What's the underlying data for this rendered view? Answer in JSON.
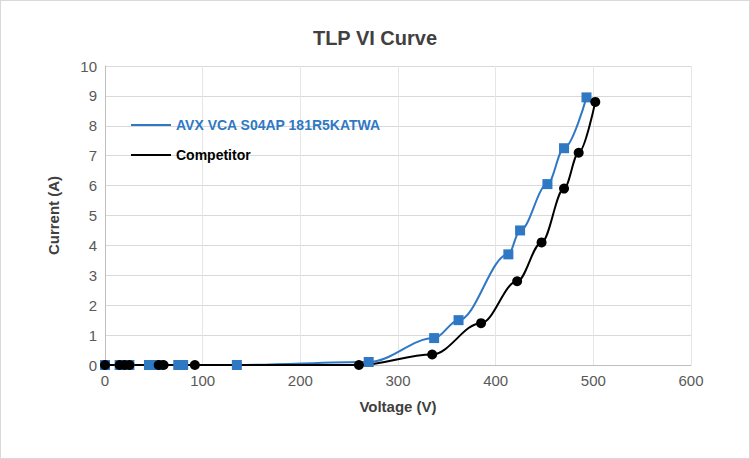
{
  "chart_data": {
    "type": "line",
    "title": "TLP VI Curve",
    "x_label": "Voltage (V)",
    "y_label": "Current (A)",
    "xlim": [
      0,
      600
    ],
    "xticks": [
      0,
      100,
      200,
      300,
      400,
      500,
      600
    ],
    "ylim": [
      0,
      10
    ],
    "yticks": [
      0,
      1,
      2,
      3,
      4,
      5,
      6,
      7,
      8,
      9,
      10
    ],
    "grid": true,
    "legend": "upper left",
    "series": [
      {
        "name": "AVX VCA S04AP 181R5KATWA",
        "color": "#2f78c4",
        "marker": "square",
        "line_style": "solid",
        "x": [
          0,
          15,
          25,
          45,
          50,
          55,
          75,
          80,
          135,
          270,
          337,
          362,
          413,
          425,
          453,
          470,
          493
        ],
        "values": [
          0,
          0,
          0,
          0,
          0,
          0,
          0,
          0,
          0,
          0.1,
          0.9,
          1.5,
          3.7,
          4.5,
          6.05,
          7.25,
          8.95
        ]
      },
      {
        "name": "Competitor",
        "color": "#000000",
        "marker": "circle",
        "line_style": "solid",
        "x": [
          0,
          15,
          20,
          25,
          55,
          60,
          92,
          260,
          335,
          385,
          422,
          447,
          470,
          485,
          502
        ],
        "values": [
          0,
          0,
          0,
          0,
          0,
          0,
          0,
          0,
          0.35,
          1.4,
          2.8,
          4.1,
          5.9,
          7.1,
          8.8
        ]
      }
    ]
  }
}
